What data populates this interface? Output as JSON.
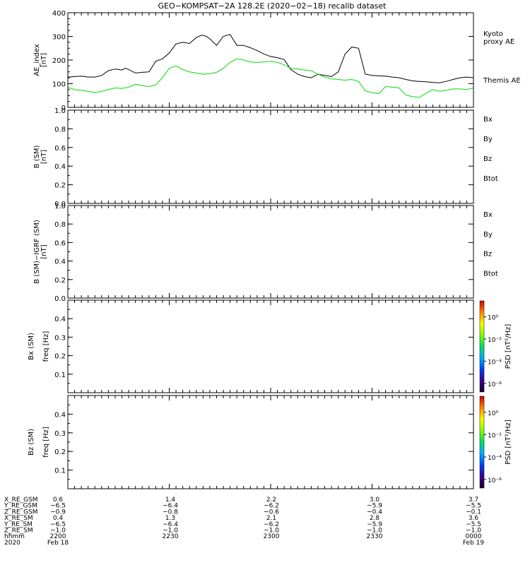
{
  "title": "GEO−KOMPSAT−2A 128.2E (2020−02−18) recalib dataset",
  "chart_data": [
    {
      "type": "line",
      "panel": "ae",
      "ylabel": "AE_index",
      "yunit": "[nT]",
      "ylim": [
        0,
        400
      ],
      "yticks": [
        "0",
        "100",
        "200",
        "300",
        "400"
      ],
      "legend": [
        {
          "name": "Kyoto",
          "color": "#00dd00"
        },
        {
          "name": "proxy AE",
          "color": "#00dd00"
        },
        {
          "name": "Themis AE",
          "color": "#000000"
        }
      ],
      "series": [
        {
          "name": "Themis AE",
          "color": "#000000",
          "x": [
            0,
            1,
            2,
            3,
            4,
            5,
            6,
            7,
            8,
            8.5,
            9,
            10,
            11,
            12,
            13,
            14,
            15,
            16,
            17,
            18,
            19,
            19.8,
            20.5,
            21,
            22,
            23,
            24,
            25,
            26,
            27,
            28,
            29,
            30,
            31,
            32,
            33,
            34,
            35,
            36,
            37,
            38,
            39,
            40,
            41,
            42,
            43,
            44,
            45,
            46,
            47,
            48,
            49,
            50,
            51,
            52,
            53,
            54,
            55,
            56,
            57,
            58,
            59,
            60
          ],
          "y": [
            128,
            130,
            132,
            128,
            128,
            135,
            155,
            162,
            158,
            165,
            160,
            145,
            148,
            150,
            195,
            205,
            230,
            268,
            275,
            270,
            295,
            305,
            300,
            290,
            262,
            300,
            308,
            262,
            262,
            252,
            240,
            225,
            215,
            210,
            202,
            160,
            140,
            130,
            125,
            140,
            135,
            130,
            150,
            225,
            255,
            250,
            140,
            135,
            133,
            132,
            128,
            125,
            118,
            112,
            110,
            108,
            105,
            104,
            110,
            118,
            125,
            128,
            125
          ]
        },
        {
          "name": "Kyoto proxy AE",
          "color": "#00dd00",
          "x": [
            0,
            1,
            2,
            3,
            4,
            5,
            6,
            7,
            8,
            9,
            10,
            11,
            12,
            13,
            14,
            15,
            16,
            17,
            18,
            19,
            20,
            21,
            22,
            23,
            24,
            25,
            26,
            27,
            28,
            29,
            30,
            31,
            32,
            33,
            34,
            35,
            36,
            37,
            38,
            39,
            40,
            41,
            42,
            43,
            44,
            45,
            46,
            47,
            48,
            49,
            50,
            51,
            52,
            53,
            54,
            55,
            56,
            57,
            58,
            59,
            60
          ],
          "y": [
            85,
            75,
            72,
            68,
            62,
            68,
            75,
            82,
            80,
            85,
            98,
            92,
            88,
            95,
            125,
            165,
            175,
            160,
            150,
            145,
            140,
            142,
            148,
            165,
            190,
            205,
            200,
            192,
            190,
            192,
            195,
            190,
            180,
            165,
            162,
            158,
            155,
            140,
            128,
            120,
            118,
            115,
            118,
            110,
            70,
            62,
            58,
            88,
            85,
            82,
            52,
            45,
            42,
            60,
            75,
            68,
            72,
            78,
            78,
            75,
            82
          ]
        }
      ]
    },
    {
      "type": "line",
      "panel": "b_sm",
      "ylabel": "B (SM)",
      "yunit": "[nT]",
      "ylim": [
        0,
        1
      ],
      "yticks": [
        "0.0",
        "0.2",
        "0.4",
        "0.6",
        "0.8",
        "1.0"
      ],
      "legend": [
        {
          "name": "Bx",
          "color": "#0000cc"
        },
        {
          "name": "By",
          "color": "#00cc00"
        },
        {
          "name": "Bz",
          "color": "#dd0000"
        },
        {
          "name": "Btot",
          "color": "#000000"
        }
      ],
      "series": []
    },
    {
      "type": "line",
      "panel": "b_igrf",
      "ylabel": "B (SM)−IGRF (SM)",
      "yunit": "[nT]",
      "ylim": [
        0,
        1
      ],
      "yticks": [
        "0.0",
        "0.2",
        "0.4",
        "0.6",
        "0.8",
        "1.0"
      ],
      "legend": [
        {
          "name": "Bx",
          "color": "#0000cc"
        },
        {
          "name": "By",
          "color": "#00cc00"
        },
        {
          "name": "Bz",
          "color": "#dd0000"
        },
        {
          "name": "Btot",
          "color": "#000000"
        }
      ],
      "series": []
    },
    {
      "type": "heatmap",
      "panel": "bx_psd",
      "ylabel": "Bx (SM)",
      "yunit": "freq [Hz]",
      "ylim": [
        0,
        0.5
      ],
      "yticks": [
        "0.1",
        "0.2",
        "0.3",
        "0.4"
      ],
      "colorbar_label": "PSD [nT²/Hz]",
      "colorbar_ticks": [
        "10⁰",
        "10⁻²",
        "10⁻⁴",
        "10⁻⁶"
      ]
    },
    {
      "type": "heatmap",
      "panel": "bz_psd",
      "ylabel": "Bz (SM)",
      "yunit": "freq [Hz]",
      "ylim": [
        0,
        0.5
      ],
      "yticks": [
        "0.1",
        "0.2",
        "0.3",
        "0.4"
      ],
      "colorbar_label": "PSD [nT²/Hz]",
      "colorbar_ticks": [
        "10⁰",
        "10⁻²",
        "10⁻⁴",
        "10⁻⁶"
      ]
    }
  ],
  "ephemeris": {
    "rows": [
      {
        "label": "X_RE_GSM",
        "values": [
          "0.6",
          "1.4",
          "2.2",
          "3.0",
          "3.7"
        ]
      },
      {
        "label": "Y_RE_GSM",
        "values": [
          "−6.5",
          "−6.4",
          "−6.2",
          "−5.9",
          "−5.5"
        ]
      },
      {
        "label": "Z_RE_GSM",
        "values": [
          "−0.9",
          "−0.8",
          "−0.6",
          "−0.4",
          "−0.1"
        ]
      },
      {
        "label": "X_RE_SM",
        "values": [
          "0.4",
          "1.3",
          "2.1",
          "2.8",
          "3.6"
        ]
      },
      {
        "label": "Y_RE_SM",
        "values": [
          "−6.5",
          "−6.4",
          "−6.2",
          "−5.9",
          "−5.5"
        ]
      },
      {
        "label": "Z_RE_SM",
        "values": [
          "−1.0",
          "−1.0",
          "−1.0",
          "−1.0",
          "−1.0"
        ]
      },
      {
        "label": "hhmm",
        "values": [
          "2200",
          "2230",
          "2300",
          "2330",
          "0000"
        ]
      }
    ],
    "year": "2020",
    "dates": [
      "Feb 18",
      "Feb 19"
    ]
  }
}
